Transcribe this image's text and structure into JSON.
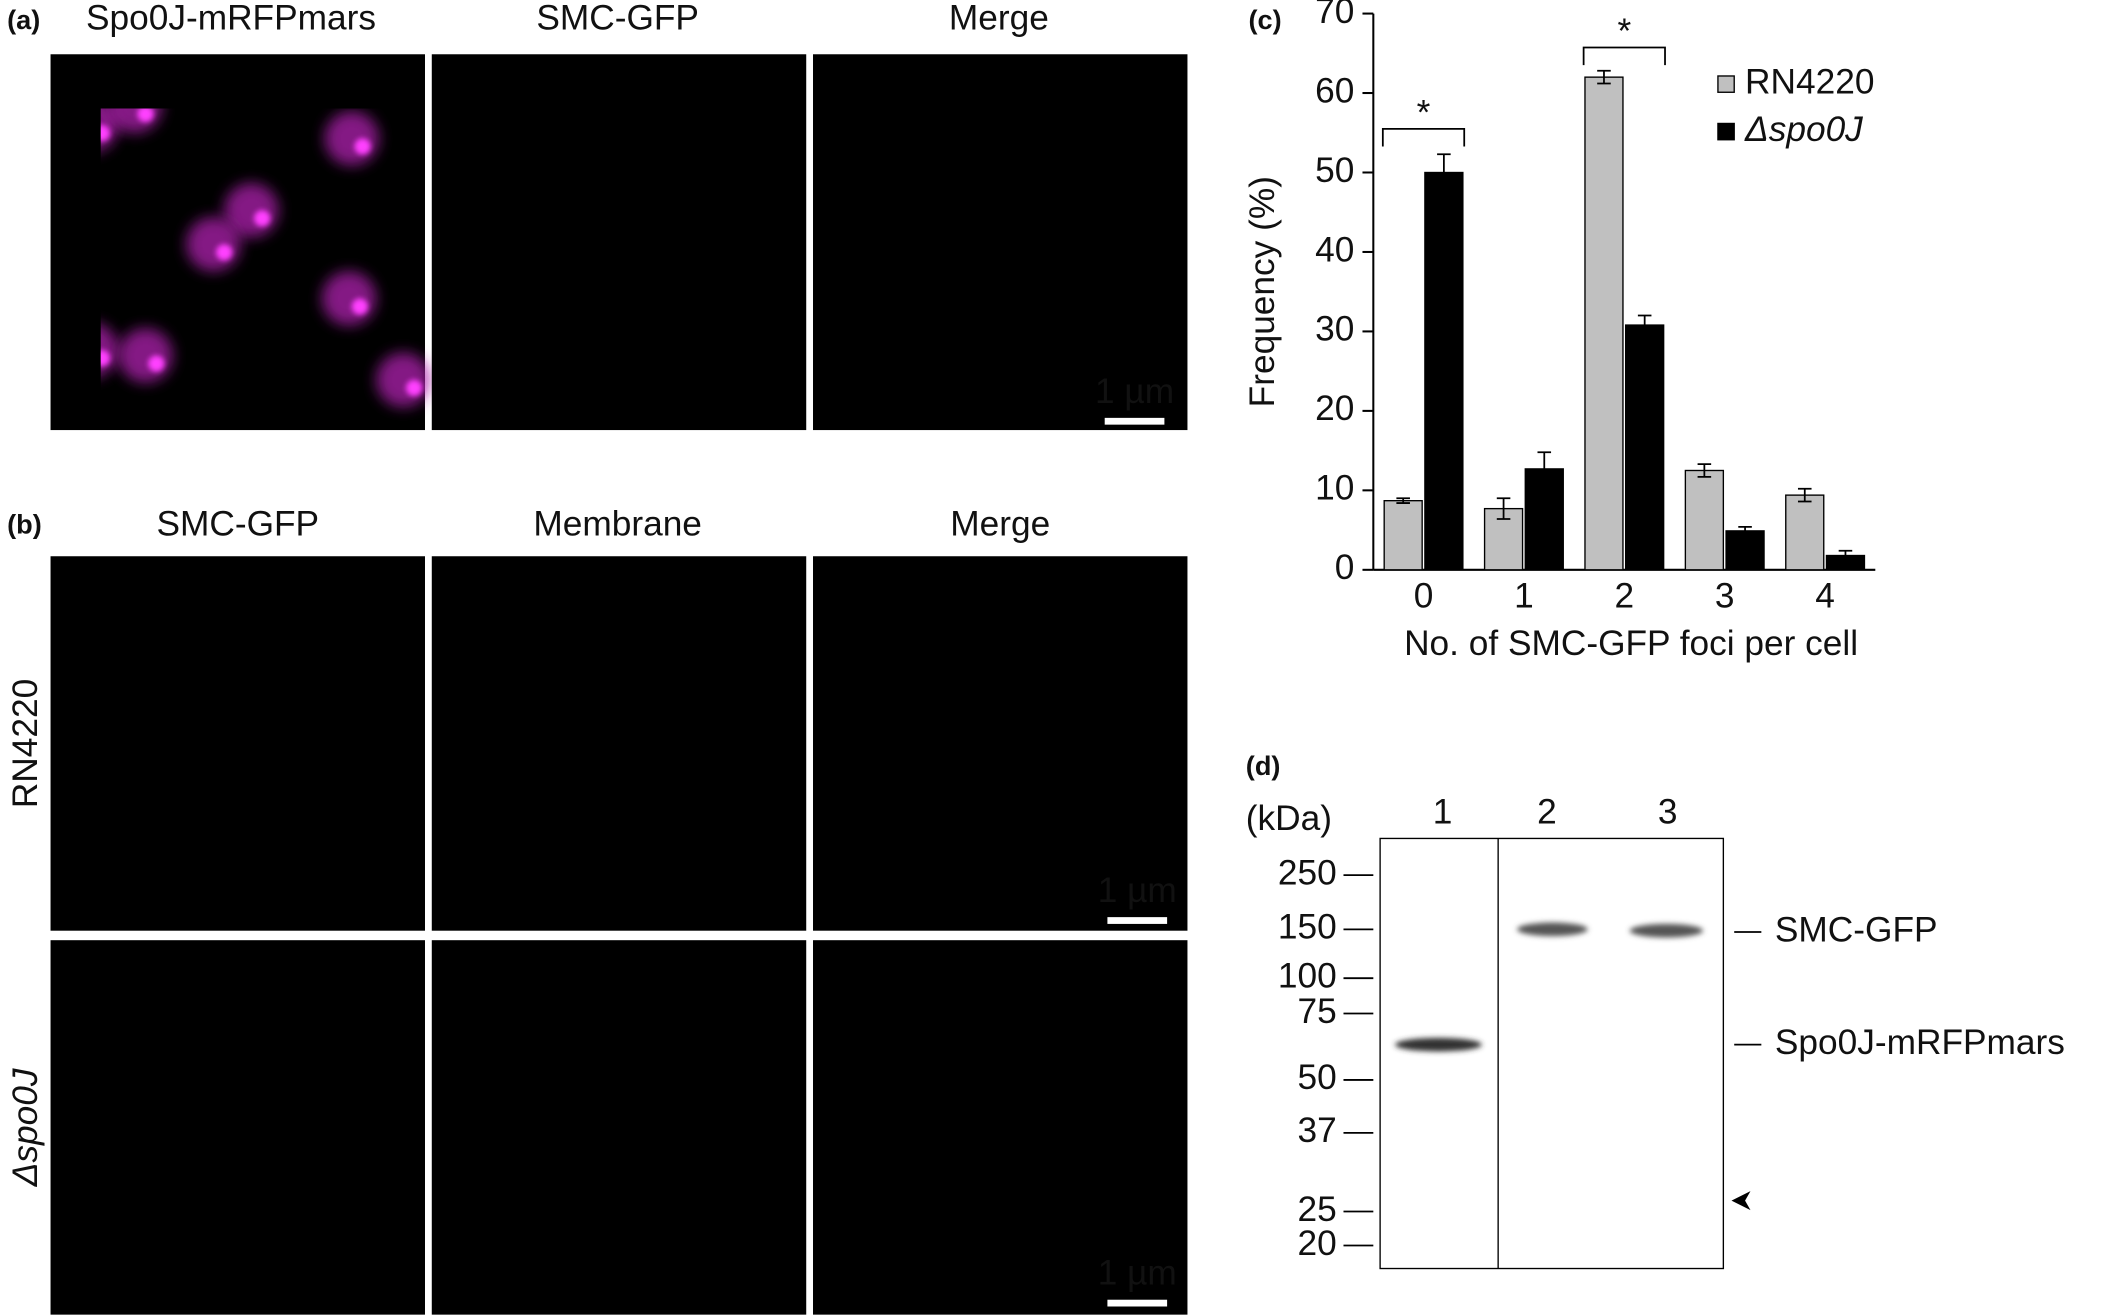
{
  "panels": {
    "a": {
      "label": "(a)",
      "titles": [
        "Spo0J-mRFPmars",
        "SMC-GFP",
        "Merge"
      ],
      "scale_bar": "1 µm"
    },
    "b": {
      "label": "(b)",
      "titles": [
        "SMC-GFP",
        "Membrane",
        "Merge"
      ],
      "rows": [
        "RN4220",
        "Δspo0J"
      ],
      "scale_bar": "1 µm"
    },
    "c": {
      "label": "(c)"
    },
    "d": {
      "label": "(d)",
      "unit": "(kDa)",
      "lanes": [
        "1",
        "2",
        "3"
      ],
      "ladder": [
        250,
        150,
        100,
        75,
        50,
        37,
        25,
        20
      ],
      "bands": [
        "SMC-GFP",
        "Spo0J-mRFPmars"
      ]
    }
  },
  "chart_data": {
    "type": "bar",
    "x_label": "No. of SMC-GFP foci per cell",
    "y_label": "Frequency (%)",
    "categories": [
      "0",
      "1",
      "2",
      "3",
      "4"
    ],
    "series": [
      {
        "name": "RN4220",
        "color": "#c0c0c0",
        "values": [
          8.7,
          7.7,
          62,
          12.5,
          9.4
        ],
        "errors": [
          0.3,
          1.3,
          0.8,
          0.8,
          0.8
        ]
      },
      {
        "name": "Δspo0J",
        "color": "#000000",
        "values": [
          50,
          12.7,
          30.8,
          4.9,
          1.8
        ],
        "errors": [
          2.3,
          2.1,
          1.2,
          0.5,
          0.6
        ]
      }
    ],
    "ylim": [
      0,
      70
    ],
    "yticks": [
      0,
      10,
      20,
      30,
      40,
      50,
      60,
      70
    ],
    "annotations": [
      "*",
      "*"
    ]
  }
}
